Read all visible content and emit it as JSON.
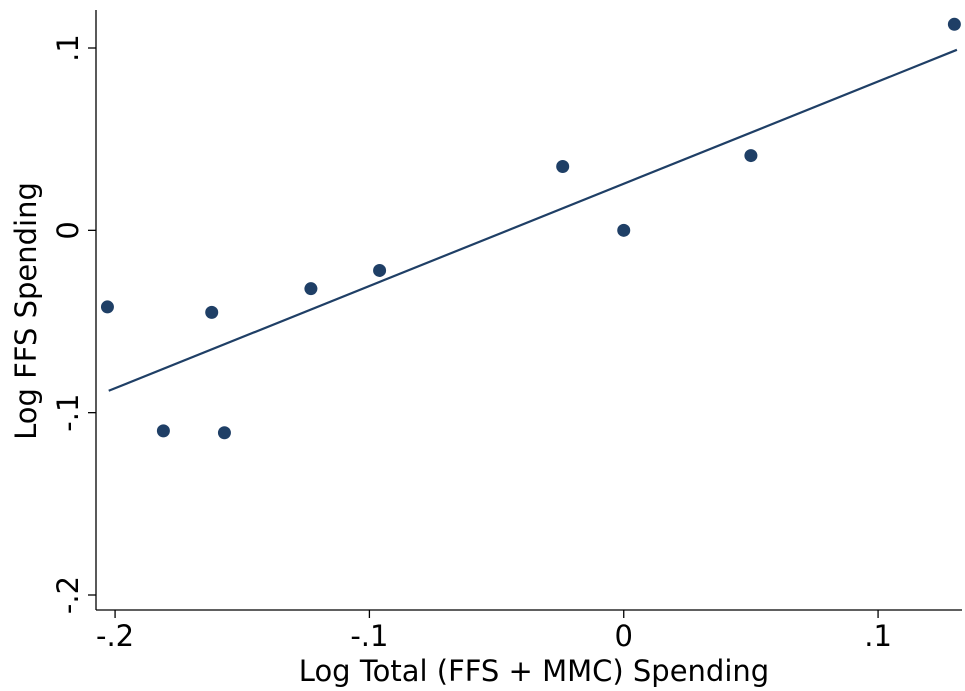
{
  "chart_data": {
    "type": "scatter",
    "xlabel": "Log Total (FFS + MMC) Spending",
    "ylabel": "Log FFS Spending",
    "xlim": [
      -0.2075,
      0.133
    ],
    "ylim": [
      -0.2,
      0.1
    ],
    "x_ticks": [
      -0.2,
      -0.1,
      0,
      0.1
    ],
    "x_tick_labels": [
      "-.2",
      "-.1",
      "0",
      ".1"
    ],
    "y_ticks": [
      -0.2,
      -0.1,
      0,
      0.1
    ],
    "y_tick_labels": [
      "-.2",
      "-.1",
      "0",
      ".1"
    ],
    "grid": false,
    "marker_color": "#1f3f66",
    "line_color": "#1f3f66",
    "points": [
      {
        "x": -0.203,
        "y": -0.042
      },
      {
        "x": -0.181,
        "y": -0.11
      },
      {
        "x": -0.162,
        "y": -0.045
      },
      {
        "x": -0.157,
        "y": -0.111
      },
      {
        "x": -0.123,
        "y": -0.032
      },
      {
        "x": -0.096,
        "y": -0.022
      },
      {
        "x": -0.024,
        "y": 0.035
      },
      {
        "x": 0.0,
        "y": 0.0
      },
      {
        "x": 0.05,
        "y": 0.041
      },
      {
        "x": 0.13,
        "y": 0.113
      }
    ],
    "fit_line": {
      "x": [
        -0.2025,
        0.131
      ],
      "y": [
        -0.088,
        0.099
      ]
    }
  }
}
